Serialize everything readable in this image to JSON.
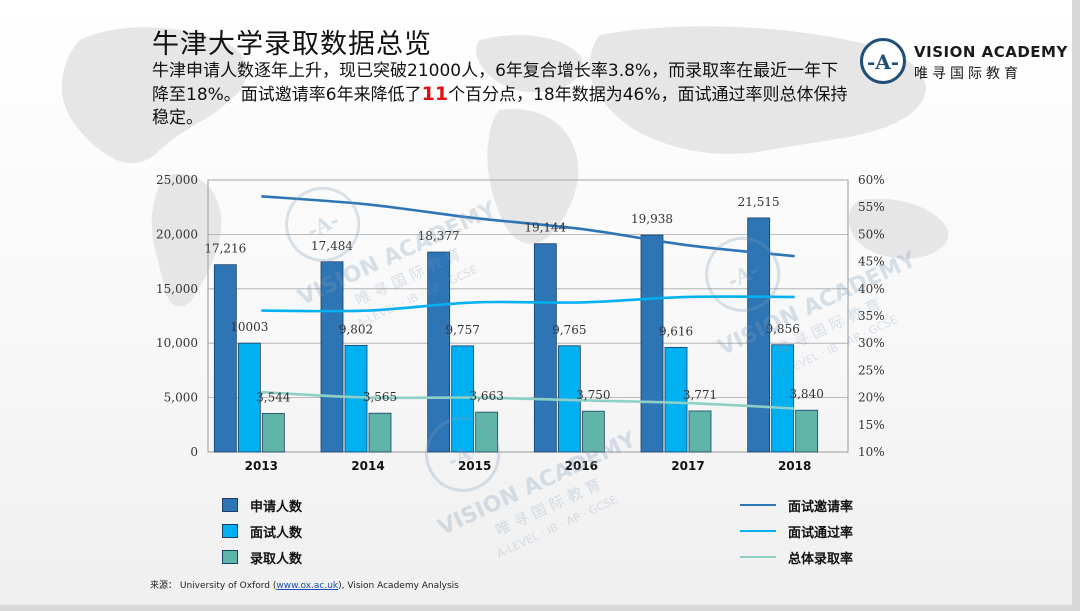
{
  "title": "牛津大学录取数据总览",
  "summary": {
    "part1": "牛津申请人数逐年上升，现已突破21000人，6年复合增长率3.8%，而录取率在最近一年下降至18%。面试邀请率6年来降低了",
    "highlight": "11",
    "part2": "个百分点，18年数据为46%，面试通过率则总体保持稳定。"
  },
  "logo": {
    "mark": "-A-",
    "name_en": "VISION ACADEMY",
    "name_cn": "唯寻国际教育"
  },
  "watermark": {
    "name_en": "VISION ACADEMY",
    "name_cn": "唯 寻 国 际 教 育",
    "tagline": "A-LEVEL · IB · AP · GCSE",
    "mark": "-A-"
  },
  "colors": {
    "applicants": "#2e75b6",
    "interviews": "#00b0f0",
    "offers": "#5fb6a8",
    "invite_rate": "#2e75b6",
    "pass_rate": "#00b0f0",
    "offer_rate": "#8fd0c6"
  },
  "chart_data": {
    "type": "bar",
    "categories": [
      "2013",
      "2014",
      "2015",
      "2016",
      "2017",
      "2018"
    ],
    "y_left": {
      "min": 0,
      "max": 25000,
      "step": 5000,
      "tick_labels": [
        "0",
        "5,000",
        "10,000",
        "15,000",
        "20,000",
        "25,000"
      ]
    },
    "y_right": {
      "min": 10,
      "max": 60,
      "step": 5,
      "tick_labels": [
        "10%",
        "15%",
        "20%",
        "25%",
        "30%",
        "35%",
        "40%",
        "45%",
        "50%",
        "55%",
        "60%"
      ]
    },
    "grid": true,
    "series": [
      {
        "name": "申请人数",
        "type": "bar",
        "axis": "left",
        "values": [
          17216,
          17484,
          18377,
          19144,
          19938,
          21515
        ],
        "labels": [
          "17,216",
          "17,484",
          "18,377",
          "19,144",
          "19,938",
          "21,515"
        ]
      },
      {
        "name": "面试人数",
        "type": "bar",
        "axis": "left",
        "values": [
          10003,
          9802,
          9757,
          9765,
          9616,
          9856
        ],
        "labels": [
          "10003",
          "9,802",
          "9,757",
          "9,765",
          "9,616",
          "9,856"
        ]
      },
      {
        "name": "录取人数",
        "type": "bar",
        "axis": "left",
        "values": [
          3544,
          3565,
          3663,
          3750,
          3771,
          3840
        ],
        "labels": [
          "3,544",
          "3,565",
          "3,663",
          "3,750",
          "3,771",
          "3,840"
        ]
      },
      {
        "name": "面试邀请率",
        "type": "line",
        "axis": "right",
        "values": [
          57,
          55.5,
          53,
          51,
          48,
          46
        ]
      },
      {
        "name": "面试通过率",
        "type": "line",
        "axis": "right",
        "values": [
          36,
          36,
          37.5,
          37.5,
          38.5,
          38.5
        ]
      },
      {
        "name": "总体录取率",
        "type": "line",
        "axis": "right",
        "values": [
          21,
          20,
          20,
          19.5,
          19,
          18
        ]
      }
    ]
  },
  "legend_left": [
    {
      "label": "申请人数",
      "color": "#2e75b6"
    },
    {
      "label": "面试人数",
      "color": "#00b0f0"
    },
    {
      "label": "录取人数",
      "color": "#5fb6a8"
    }
  ],
  "legend_right": [
    {
      "label": "面试邀请率",
      "color": "#2e75b6"
    },
    {
      "label": "面试通过率",
      "color": "#00b0f0"
    },
    {
      "label": "总体录取率",
      "color": "#8fd0c6"
    }
  ],
  "source": {
    "prefix": "来源： University of Oxford (",
    "link": "www.ox.ac.uk",
    "suffix": "), Vision Academy Analysis"
  }
}
